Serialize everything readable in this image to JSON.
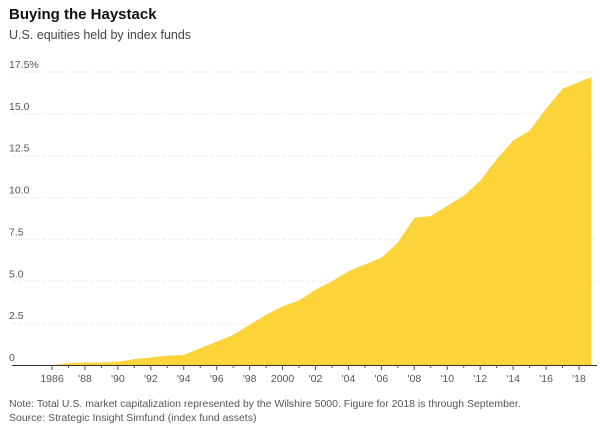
{
  "chart_data": {
    "type": "area",
    "title": "Buying the Haystack",
    "subtitle": "U.S. equities held by index funds",
    "xlabel": "",
    "ylabel": "",
    "x_ticks": [
      "1986",
      "'88",
      "'90",
      "'92",
      "'94",
      "'96",
      "'98",
      "2000",
      "'02",
      "'04",
      "'06",
      "'08",
      "'10",
      "'12",
      "'14",
      "'16",
      "'18"
    ],
    "y_ticks": [
      "0",
      "2.5",
      "5.0",
      "7.5",
      "10.0",
      "12.5",
      "15.0",
      "17.5%"
    ],
    "ylim": [
      0,
      17.5
    ],
    "xlim": [
      1984.8,
      2018.75
    ],
    "grid": true,
    "color": "#fcd43a",
    "series": [
      {
        "x": [
          1986,
          1987,
          1988,
          1989,
          1990,
          1991,
          1992,
          1993,
          1994,
          1995,
          1996,
          1997,
          1998,
          1999,
          2000,
          2001,
          2002,
          2003,
          2004,
          2005,
          2006,
          2007,
          2008,
          2009,
          2010,
          2011,
          2012,
          2013,
          2014,
          2015,
          2016,
          2017,
          2018.75
        ],
        "values": [
          0.0,
          0.1,
          0.15,
          0.15,
          0.2,
          0.35,
          0.45,
          0.55,
          0.6,
          1.0,
          1.4,
          1.8,
          2.4,
          3.0,
          3.5,
          3.85,
          4.5,
          5.0,
          5.6,
          6.0,
          6.4,
          7.3,
          8.8,
          8.9,
          9.5,
          10.1,
          11.0,
          12.3,
          13.4,
          14.0,
          15.3,
          16.5,
          17.2
        ]
      }
    ]
  },
  "notes": {
    "note": "Note: Total U.S. market capitalization represented by the Wilshire 5000. Figure for 2018 is through September.",
    "source": "Source: Strategic Insight Simfund (index fund assets)"
  }
}
